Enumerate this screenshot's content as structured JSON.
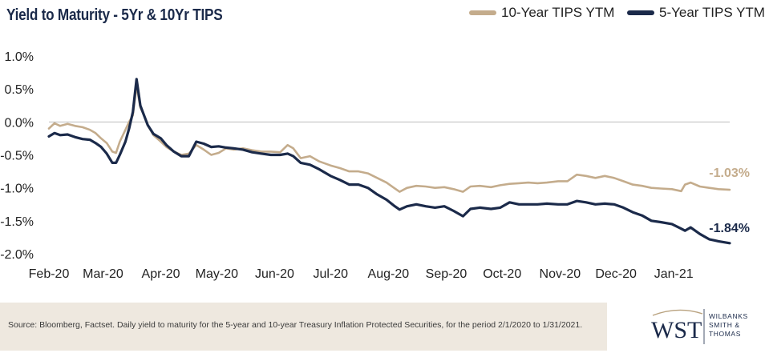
{
  "chart_data": {
    "type": "line",
    "title": "Yield to Maturity - 5Yr & 10Yr TIPS",
    "ylim": [
      -2.0,
      1.0
    ],
    "yticks": [
      "1.0%",
      "0.5%",
      "0.0%",
      "-0.5%",
      "-1.0%",
      "-1.5%",
      "-2.0%"
    ],
    "ytick_values": [
      1.0,
      0.5,
      0.0,
      -0.5,
      -1.0,
      -1.5,
      -2.0
    ],
    "x_months": [
      "Feb-20",
      "Mar-20",
      "Apr-20",
      "May-20",
      "Jun-20",
      "Jul-20",
      "Aug-20",
      "Sep-20",
      "Oct-20",
      "Nov-20",
      "Dec-20",
      "Jan-21"
    ],
    "xlim": [
      "2020-02-01",
      "2021-01-31"
    ],
    "grid": false,
    "legend": "top-right",
    "series": [
      {
        "name": "10-Year TIPS YTM",
        "color": "#c4ac8c",
        "end_label": "-1.03%",
        "points": [
          [
            "2020-02-01",
            -0.1
          ],
          [
            "2020-02-04",
            -0.02
          ],
          [
            "2020-02-07",
            -0.06
          ],
          [
            "2020-02-11",
            -0.03
          ],
          [
            "2020-02-15",
            -0.06
          ],
          [
            "2020-02-19",
            -0.08
          ],
          [
            "2020-02-23",
            -0.12
          ],
          [
            "2020-02-26",
            -0.17
          ],
          [
            "2020-02-29",
            -0.25
          ],
          [
            "2020-03-03",
            -0.32
          ],
          [
            "2020-03-06",
            -0.45
          ],
          [
            "2020-03-08",
            -0.47
          ],
          [
            "2020-03-10",
            -0.3
          ],
          [
            "2020-03-13",
            -0.12
          ],
          [
            "2020-03-15",
            0.0
          ],
          [
            "2020-03-17",
            0.1
          ],
          [
            "2020-03-19",
            0.55
          ],
          [
            "2020-03-21",
            0.22
          ],
          [
            "2020-03-23",
            0.1
          ],
          [
            "2020-03-25",
            -0.05
          ],
          [
            "2020-03-28",
            -0.2
          ],
          [
            "2020-04-01",
            -0.3
          ],
          [
            "2020-04-04",
            -0.38
          ],
          [
            "2020-04-08",
            -0.45
          ],
          [
            "2020-04-12",
            -0.5
          ],
          [
            "2020-04-16",
            -0.48
          ],
          [
            "2020-04-20",
            -0.35
          ],
          [
            "2020-04-24",
            -0.42
          ],
          [
            "2020-04-28",
            -0.5
          ],
          [
            "2020-05-02",
            -0.47
          ],
          [
            "2020-05-06",
            -0.4
          ],
          [
            "2020-05-10",
            -0.42
          ],
          [
            "2020-05-15",
            -0.4
          ],
          [
            "2020-05-20",
            -0.43
          ],
          [
            "2020-05-25",
            -0.45
          ],
          [
            "2020-05-30",
            -0.45
          ],
          [
            "2020-06-04",
            -0.46
          ],
          [
            "2020-06-08",
            -0.35
          ],
          [
            "2020-06-11",
            -0.4
          ],
          [
            "2020-06-15",
            -0.55
          ],
          [
            "2020-06-20",
            -0.52
          ],
          [
            "2020-06-25",
            -0.6
          ],
          [
            "2020-07-01",
            -0.66
          ],
          [
            "2020-07-06",
            -0.7
          ],
          [
            "2020-07-11",
            -0.75
          ],
          [
            "2020-07-16",
            -0.75
          ],
          [
            "2020-07-21",
            -0.78
          ],
          [
            "2020-07-26",
            -0.85
          ],
          [
            "2020-07-31",
            -0.92
          ],
          [
            "2020-08-04",
            -1.0
          ],
          [
            "2020-08-07",
            -1.06
          ],
          [
            "2020-08-11",
            -1.0
          ],
          [
            "2020-08-16",
            -0.97
          ],
          [
            "2020-08-21",
            -0.98
          ],
          [
            "2020-08-26",
            -1.0
          ],
          [
            "2020-08-31",
            -0.99
          ],
          [
            "2020-09-05",
            -1.02
          ],
          [
            "2020-09-10",
            -1.06
          ],
          [
            "2020-09-14",
            -0.98
          ],
          [
            "2020-09-19",
            -0.97
          ],
          [
            "2020-09-25",
            -0.99
          ],
          [
            "2020-09-30",
            -0.96
          ],
          [
            "2020-10-05",
            -0.94
          ],
          [
            "2020-10-10",
            -0.93
          ],
          [
            "2020-10-15",
            -0.92
          ],
          [
            "2020-10-20",
            -0.93
          ],
          [
            "2020-10-25",
            -0.92
          ],
          [
            "2020-10-31",
            -0.9
          ],
          [
            "2020-11-05",
            -0.9
          ],
          [
            "2020-11-10",
            -0.8
          ],
          [
            "2020-11-15",
            -0.82
          ],
          [
            "2020-11-20",
            -0.85
          ],
          [
            "2020-11-25",
            -0.82
          ],
          [
            "2020-11-30",
            -0.85
          ],
          [
            "2020-12-05",
            -0.9
          ],
          [
            "2020-12-10",
            -0.95
          ],
          [
            "2020-12-15",
            -0.97
          ],
          [
            "2020-12-20",
            -1.0
          ],
          [
            "2020-12-25",
            -1.01
          ],
          [
            "2020-12-31",
            -1.02
          ],
          [
            "2021-01-05",
            -1.05
          ],
          [
            "2021-01-07",
            -0.95
          ],
          [
            "2021-01-10",
            -0.92
          ],
          [
            "2021-01-15",
            -0.98
          ],
          [
            "2021-01-20",
            -1.0
          ],
          [
            "2021-01-25",
            -1.02
          ],
          [
            "2021-01-31",
            -1.03
          ]
        ]
      },
      {
        "name": "5-Year TIPS YTM",
        "color": "#1b2a4a",
        "end_label": "-1.84%",
        "points": [
          [
            "2020-02-01",
            -0.22
          ],
          [
            "2020-02-04",
            -0.17
          ],
          [
            "2020-02-07",
            -0.2
          ],
          [
            "2020-02-11",
            -0.19
          ],
          [
            "2020-02-15",
            -0.23
          ],
          [
            "2020-02-19",
            -0.26
          ],
          [
            "2020-02-23",
            -0.27
          ],
          [
            "2020-02-26",
            -0.32
          ],
          [
            "2020-02-29",
            -0.38
          ],
          [
            "2020-03-03",
            -0.48
          ],
          [
            "2020-03-06",
            -0.62
          ],
          [
            "2020-03-08",
            -0.62
          ],
          [
            "2020-03-10",
            -0.5
          ],
          [
            "2020-03-13",
            -0.3
          ],
          [
            "2020-03-15",
            -0.1
          ],
          [
            "2020-03-17",
            0.15
          ],
          [
            "2020-03-19",
            0.65
          ],
          [
            "2020-03-21",
            0.25
          ],
          [
            "2020-03-23",
            0.1
          ],
          [
            "2020-03-25",
            -0.05
          ],
          [
            "2020-03-28",
            -0.18
          ],
          [
            "2020-04-01",
            -0.25
          ],
          [
            "2020-04-04",
            -0.35
          ],
          [
            "2020-04-08",
            -0.45
          ],
          [
            "2020-04-12",
            -0.52
          ],
          [
            "2020-04-16",
            -0.52
          ],
          [
            "2020-04-20",
            -0.3
          ],
          [
            "2020-04-24",
            -0.33
          ],
          [
            "2020-04-28",
            -0.38
          ],
          [
            "2020-05-02",
            -0.37
          ],
          [
            "2020-05-06",
            -0.39
          ],
          [
            "2020-05-10",
            -0.4
          ],
          [
            "2020-05-15",
            -0.42
          ],
          [
            "2020-05-20",
            -0.46
          ],
          [
            "2020-05-25",
            -0.48
          ],
          [
            "2020-05-30",
            -0.5
          ],
          [
            "2020-06-04",
            -0.5
          ],
          [
            "2020-06-08",
            -0.48
          ],
          [
            "2020-06-11",
            -0.52
          ],
          [
            "2020-06-15",
            -0.62
          ],
          [
            "2020-06-20",
            -0.65
          ],
          [
            "2020-06-25",
            -0.72
          ],
          [
            "2020-07-01",
            -0.82
          ],
          [
            "2020-07-06",
            -0.88
          ],
          [
            "2020-07-11",
            -0.95
          ],
          [
            "2020-07-16",
            -0.95
          ],
          [
            "2020-07-21",
            -1.0
          ],
          [
            "2020-07-26",
            -1.1
          ],
          [
            "2020-07-31",
            -1.18
          ],
          [
            "2020-08-04",
            -1.27
          ],
          [
            "2020-08-07",
            -1.33
          ],
          [
            "2020-08-11",
            -1.28
          ],
          [
            "2020-08-16",
            -1.25
          ],
          [
            "2020-08-21",
            -1.28
          ],
          [
            "2020-08-26",
            -1.3
          ],
          [
            "2020-08-31",
            -1.28
          ],
          [
            "2020-09-05",
            -1.35
          ],
          [
            "2020-09-10",
            -1.43
          ],
          [
            "2020-09-14",
            -1.32
          ],
          [
            "2020-09-19",
            -1.3
          ],
          [
            "2020-09-25",
            -1.32
          ],
          [
            "2020-09-30",
            -1.3
          ],
          [
            "2020-10-05",
            -1.22
          ],
          [
            "2020-10-10",
            -1.25
          ],
          [
            "2020-10-15",
            -1.25
          ],
          [
            "2020-10-20",
            -1.25
          ],
          [
            "2020-10-25",
            -1.24
          ],
          [
            "2020-10-31",
            -1.25
          ],
          [
            "2020-11-05",
            -1.25
          ],
          [
            "2020-11-10",
            -1.2
          ],
          [
            "2020-11-15",
            -1.22
          ],
          [
            "2020-11-20",
            -1.25
          ],
          [
            "2020-11-25",
            -1.24
          ],
          [
            "2020-11-30",
            -1.25
          ],
          [
            "2020-12-05",
            -1.3
          ],
          [
            "2020-12-10",
            -1.37
          ],
          [
            "2020-12-15",
            -1.42
          ],
          [
            "2020-12-20",
            -1.5
          ],
          [
            "2020-12-25",
            -1.52
          ],
          [
            "2020-12-31",
            -1.55
          ],
          [
            "2021-01-05",
            -1.62
          ],
          [
            "2021-01-07",
            -1.65
          ],
          [
            "2021-01-10",
            -1.6
          ],
          [
            "2021-01-15",
            -1.7
          ],
          [
            "2021-01-20",
            -1.78
          ],
          [
            "2021-01-25",
            -1.81
          ],
          [
            "2021-01-31",
            -1.84
          ]
        ]
      }
    ]
  },
  "footer": {
    "source": "Source: Bloomberg, Factset. Daily yield to maturity for the 5-year and 10-year Treasury Inflation Protected Securities, for the period 2/1/2020 to 1/31/2021."
  },
  "logo": {
    "mark": "WST",
    "line1": "WILBANKS",
    "line2": "SMITH &",
    "line3": "THOMAS"
  }
}
